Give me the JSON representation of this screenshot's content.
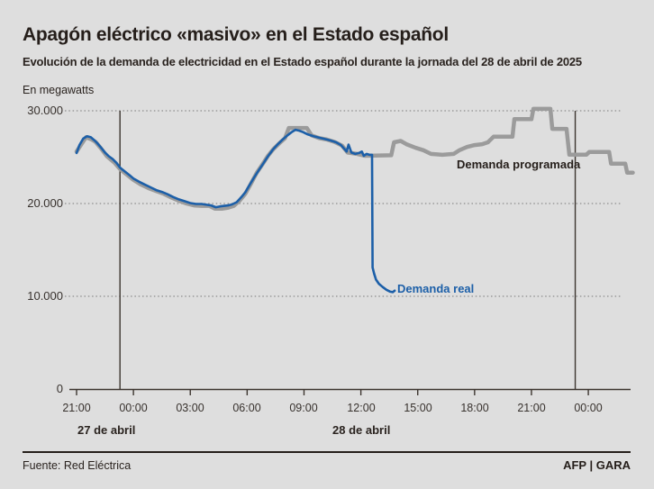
{
  "header": {
    "title": "Apagón eléctrico «masivo» en el Estado español",
    "subtitle": "Evolución de la demanda de electricidad en el Estado español durante la jornada del 28 de abril de 2025",
    "units_label": "En megawatts"
  },
  "footer": {
    "source": "Fuente: Red Eléctrica",
    "credit": "AFP | GARA"
  },
  "colors": {
    "background": "#dedede",
    "text": "#251e1a",
    "axis": "#3c352f",
    "grid": "#8d8d8d",
    "real": "#1c5fa8",
    "programada": "#9b9b9b"
  },
  "chart_data": {
    "type": "line",
    "title": "Apagón eléctrico «masivo» en el Estado español",
    "ylabel": "En megawatts",
    "ylim": [
      0,
      30000
    ],
    "xlim_hours": [
      0,
      29.4
    ],
    "x_origin": "27 de abril 21:00",
    "grid": "dotted-horizontal",
    "y_ticks": [
      {
        "value": 30000,
        "label": "30.000"
      },
      {
        "value": 20000,
        "label": "20.000"
      },
      {
        "value": 10000,
        "label": "10.000"
      },
      {
        "value": 0,
        "label": "0"
      }
    ],
    "x_ticks": [
      {
        "t": 0,
        "label": "21:00"
      },
      {
        "t": 3,
        "label": "00:00"
      },
      {
        "t": 6,
        "label": "03:00"
      },
      {
        "t": 9,
        "label": "06:00"
      },
      {
        "t": 12,
        "label": "09:00"
      },
      {
        "t": 15,
        "label": "12:00"
      },
      {
        "t": 18,
        "label": "15:00"
      },
      {
        "t": 21,
        "label": "18:00"
      },
      {
        "t": 24,
        "label": "21:00"
      },
      {
        "t": 27,
        "label": "00:00"
      }
    ],
    "day_separators_t": [
      2.29,
      26.31
    ],
    "date_labels": [
      {
        "label": "27 de abril"
      },
      {
        "label": "28 de abril"
      }
    ],
    "series": [
      {
        "name": "Demanda programada",
        "color_key": "programada",
        "points": [
          [
            0,
            25600
          ],
          [
            0.5,
            27150
          ],
          [
            0.8,
            26900
          ],
          [
            1.0,
            26650
          ],
          [
            1.3,
            25900
          ],
          [
            1.6,
            25100
          ],
          [
            2.0,
            24400
          ],
          [
            2.3,
            23700
          ],
          [
            2.6,
            23200
          ],
          [
            3.0,
            22550
          ],
          [
            3.4,
            22050
          ],
          [
            3.8,
            21650
          ],
          [
            4.2,
            21350
          ],
          [
            4.6,
            21050
          ],
          [
            5.0,
            20650
          ],
          [
            5.4,
            20300
          ],
          [
            5.8,
            20000
          ],
          [
            6.2,
            19800
          ],
          [
            6.6,
            19750
          ],
          [
            7.0,
            19750
          ],
          [
            7.3,
            19450
          ],
          [
            7.7,
            19450
          ],
          [
            8.0,
            19550
          ],
          [
            8.3,
            19750
          ],
          [
            8.6,
            20300
          ],
          [
            8.9,
            21050
          ],
          [
            9.2,
            22150
          ],
          [
            9.5,
            23300
          ],
          [
            9.8,
            24200
          ],
          [
            10.1,
            25150
          ],
          [
            10.4,
            25900
          ],
          [
            10.7,
            26500
          ],
          [
            11.0,
            27050
          ],
          [
            11.2,
            28150
          ],
          [
            12.15,
            28150
          ],
          [
            12.4,
            27350
          ],
          [
            12.8,
            27050
          ],
          [
            13.2,
            26900
          ],
          [
            13.6,
            26650
          ],
          [
            14.0,
            26250
          ],
          [
            14.3,
            25500
          ],
          [
            14.8,
            25350
          ],
          [
            15.2,
            25150
          ],
          [
            16.6,
            25200
          ],
          [
            16.75,
            26600
          ],
          [
            17.1,
            26750
          ],
          [
            17.4,
            26400
          ],
          [
            17.9,
            26000
          ],
          [
            18.3,
            25750
          ],
          [
            18.7,
            25350
          ],
          [
            19.3,
            25250
          ],
          [
            19.9,
            25350
          ],
          [
            20.2,
            25750
          ],
          [
            20.6,
            26100
          ],
          [
            21.0,
            26300
          ],
          [
            21.4,
            26400
          ],
          [
            21.7,
            26600
          ],
          [
            22.0,
            27200
          ],
          [
            23.0,
            27200
          ],
          [
            23.1,
            29100
          ],
          [
            24.0,
            29100
          ],
          [
            24.1,
            30200
          ],
          [
            25.0,
            30200
          ],
          [
            25.1,
            28050
          ],
          [
            25.85,
            28050
          ],
          [
            26.0,
            25270
          ],
          [
            26.9,
            25270
          ],
          [
            27.05,
            25550
          ],
          [
            28.1,
            25550
          ],
          [
            28.2,
            24300
          ],
          [
            28.95,
            24300
          ],
          [
            29.05,
            23330
          ],
          [
            29.35,
            23330
          ]
        ]
      },
      {
        "name": "Demanda real",
        "color_key": "real",
        "points": [
          [
            0,
            25450
          ],
          [
            0.15,
            26300
          ],
          [
            0.35,
            27000
          ],
          [
            0.55,
            27250
          ],
          [
            0.75,
            27150
          ],
          [
            0.95,
            26800
          ],
          [
            1.1,
            26500
          ],
          [
            1.3,
            26000
          ],
          [
            1.5,
            25500
          ],
          [
            1.7,
            25100
          ],
          [
            1.9,
            24800
          ],
          [
            2.1,
            24400
          ],
          [
            2.3,
            23850
          ],
          [
            2.55,
            23450
          ],
          [
            2.8,
            23050
          ],
          [
            3.0,
            22700
          ],
          [
            3.3,
            22350
          ],
          [
            3.6,
            22050
          ],
          [
            3.9,
            21750
          ],
          [
            4.2,
            21450
          ],
          [
            4.5,
            21250
          ],
          [
            4.8,
            21000
          ],
          [
            5.1,
            20700
          ],
          [
            5.4,
            20450
          ],
          [
            5.7,
            20250
          ],
          [
            6.0,
            20050
          ],
          [
            6.3,
            19950
          ],
          [
            6.6,
            19950
          ],
          [
            6.9,
            19850
          ],
          [
            7.1,
            19800
          ],
          [
            7.35,
            19600
          ],
          [
            7.6,
            19700
          ],
          [
            7.8,
            19750
          ],
          [
            8.0,
            19800
          ],
          [
            8.2,
            19900
          ],
          [
            8.45,
            20150
          ],
          [
            8.7,
            20700
          ],
          [
            8.9,
            21200
          ],
          [
            9.1,
            21900
          ],
          [
            9.35,
            22750
          ],
          [
            9.6,
            23550
          ],
          [
            9.85,
            24300
          ],
          [
            10.1,
            25100
          ],
          [
            10.35,
            25800
          ],
          [
            10.6,
            26350
          ],
          [
            10.85,
            26850
          ],
          [
            11.1,
            27300
          ],
          [
            11.35,
            27700
          ],
          [
            11.55,
            27950
          ],
          [
            11.75,
            27850
          ],
          [
            11.95,
            27700
          ],
          [
            12.2,
            27450
          ],
          [
            12.5,
            27250
          ],
          [
            12.8,
            27100
          ],
          [
            13.1,
            26950
          ],
          [
            13.4,
            26800
          ],
          [
            13.7,
            26600
          ],
          [
            13.95,
            26300
          ],
          [
            14.1,
            25950
          ],
          [
            14.25,
            25600
          ],
          [
            14.35,
            26350
          ],
          [
            14.5,
            25500
          ],
          [
            14.7,
            25350
          ],
          [
            14.9,
            25450
          ],
          [
            15.05,
            25600
          ],
          [
            15.15,
            25150
          ],
          [
            15.3,
            25350
          ],
          [
            15.45,
            25250
          ],
          [
            15.59,
            25250
          ],
          [
            15.62,
            13100
          ],
          [
            15.7,
            12450
          ],
          [
            15.8,
            11800
          ],
          [
            15.95,
            11350
          ],
          [
            16.15,
            11000
          ],
          [
            16.35,
            10700
          ],
          [
            16.55,
            10500
          ],
          [
            16.68,
            10450
          ],
          [
            16.78,
            10600
          ]
        ]
      }
    ],
    "annotations": [
      {
        "text": "Demanda programada",
        "color_key": "text"
      },
      {
        "text": "Demanda real",
        "color_key": "real"
      }
    ]
  }
}
